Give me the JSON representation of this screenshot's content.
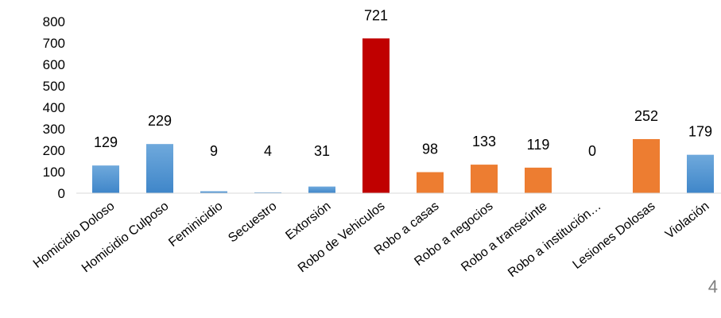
{
  "chart_data": {
    "type": "bar",
    "title": "",
    "xlabel": "",
    "ylabel": "",
    "ylim": [
      0,
      800
    ],
    "yticks": [
      0,
      100,
      200,
      300,
      400,
      500,
      600,
      700,
      800
    ],
    "grid": false,
    "legend": "none",
    "categories": [
      "Homicidio Doloso",
      "Homicidio Culposo",
      "Feminicidio",
      "Secuestro",
      "Extorsión",
      "Robo de Vehiculos",
      "Robo a casas",
      "Robo a negocios",
      "Robo a transeúnte",
      "Robo a institución…",
      "Lesiones Dolosas",
      "Violación"
    ],
    "values": [
      129,
      229,
      9,
      4,
      31,
      721,
      98,
      133,
      119,
      0,
      252,
      179
    ],
    "bar_colors": [
      "#5b9bd5",
      "#5b9bd5",
      "#5b9bd5",
      "#5b9bd5",
      "#5b9bd5",
      "#c00000",
      "#ed7d31",
      "#ed7d31",
      "#ed7d31",
      "#ed7d31",
      "#ed7d31",
      "#5b9bd5"
    ]
  },
  "page_number": "4"
}
